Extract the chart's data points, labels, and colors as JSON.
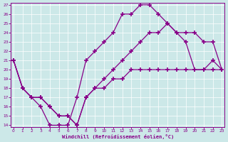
{
  "background_color": "#cce8e8",
  "line_color": "#880088",
  "xlabel": "Windchill (Refroidissement éolien,°C)",
  "xlim": [
    0,
    23
  ],
  "ylim": [
    14,
    27
  ],
  "xticks": [
    0,
    1,
    2,
    3,
    4,
    5,
    6,
    7,
    8,
    9,
    10,
    11,
    12,
    13,
    14,
    15,
    16,
    17,
    18,
    19,
    20,
    21,
    22,
    23
  ],
  "yticks": [
    14,
    15,
    16,
    17,
    18,
    19,
    20,
    21,
    22,
    23,
    24,
    25,
    26,
    27
  ],
  "curve1_x": [
    0,
    1,
    2,
    3,
    4,
    5,
    6,
    7,
    8,
    9,
    10,
    11,
    12,
    13,
    14,
    15,
    16,
    17,
    18,
    19,
    20,
    21,
    22,
    23
  ],
  "curve1_y": [
    21,
    18,
    17,
    16,
    14,
    14,
    14,
    17,
    21,
    22,
    23,
    24,
    26,
    26,
    27,
    27,
    26,
    25,
    24,
    23,
    20,
    20,
    21,
    20
  ],
  "curve2_x": [
    0,
    1,
    2,
    3,
    4,
    5,
    6,
    7,
    8,
    9,
    10,
    11,
    12,
    13,
    14,
    15,
    16,
    17,
    18,
    19,
    20,
    21,
    22,
    23
  ],
  "curve2_y": [
    21,
    18,
    17,
    17,
    16,
    15,
    15,
    14,
    17,
    18,
    19,
    20,
    21,
    22,
    23,
    24,
    24,
    25,
    24,
    24,
    24,
    23,
    23,
    20
  ],
  "curve3_x": [
    0,
    1,
    2,
    3,
    4,
    5,
    6,
    7,
    8,
    9,
    10,
    11,
    12,
    13,
    14,
    15,
    16,
    17,
    18,
    19,
    20,
    21,
    22,
    23
  ],
  "curve3_y": [
    21,
    18,
    17,
    17,
    16,
    15,
    15,
    14,
    17,
    18,
    18,
    19,
    19,
    20,
    20,
    20,
    20,
    20,
    20,
    20,
    20,
    20,
    20,
    20
  ]
}
